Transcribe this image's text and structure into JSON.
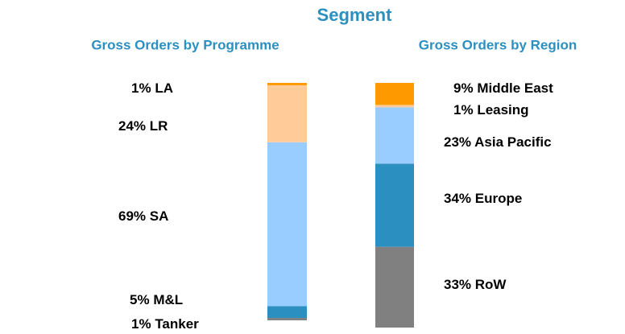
{
  "title": "Segment",
  "chart_data": [
    {
      "type": "stacked_bar",
      "title": "Gross Orders by Programme",
      "series": [
        {
          "name": "Tanker",
          "color": "#808080",
          "values": [
            1
          ],
          "value_labels": [
            "1%"
          ]
        },
        {
          "name": "M&L",
          "color": "#2b8fc0",
          "values": [
            5
          ],
          "value_labels": [
            "5%"
          ]
        },
        {
          "name": "SA",
          "color": "#99ccff",
          "values": [
            69
          ],
          "value_labels": [
            "69%"
          ]
        },
        {
          "name": "LR",
          "color": "#ffcc99",
          "values": [
            24
          ],
          "value_labels": [
            "24%"
          ]
        },
        {
          "name": "LA",
          "color": "#ff9900",
          "values": [
            1
          ],
          "value_labels": [
            "1%"
          ]
        }
      ]
    },
    {
      "type": "stacked_bar",
      "title": "Gross Orders by Region",
      "series": [
        {
          "name": "RoW",
          "color": "#808080",
          "values": [
            33
          ],
          "value_labels": [
            "33%"
          ]
        },
        {
          "name": "Europe",
          "color": "#2b8fc0",
          "values": [
            34
          ],
          "value_labels": [
            "34%"
          ]
        },
        {
          "name": "Asia Pacific",
          "color": "#99ccff",
          "values": [
            23
          ],
          "value_labels": [
            "23%"
          ]
        },
        {
          "name": "Leasing",
          "color": "#ffcc99",
          "values": [
            1
          ],
          "value_labels": [
            "1%"
          ]
        },
        {
          "name": "Middle East",
          "color": "#ff9900",
          "values": [
            9
          ],
          "value_labels": [
            "9%"
          ]
        }
      ]
    }
  ]
}
